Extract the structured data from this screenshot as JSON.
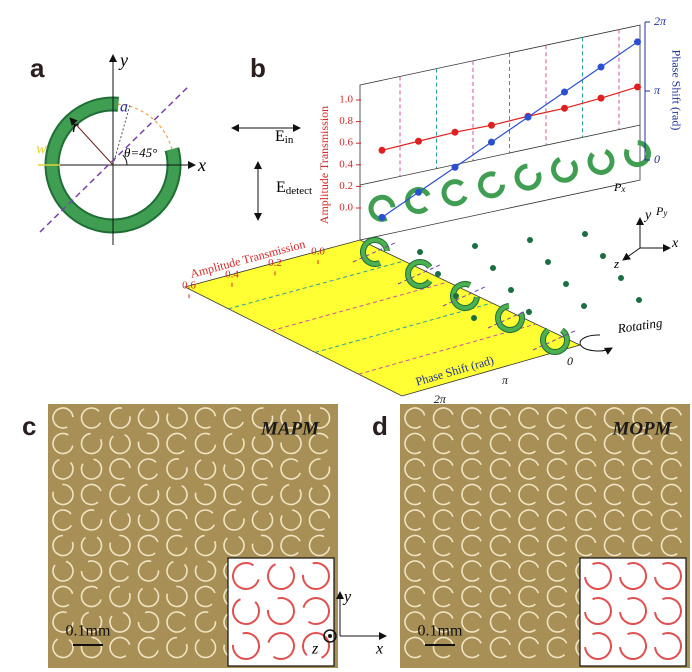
{
  "panel_labels": [
    "a",
    "b",
    "c",
    "d"
  ],
  "panel_a": {
    "axis_y": "y",
    "axis_x": "x",
    "radius": "r",
    "gap": "a",
    "width": "w",
    "angle": "θ=45°"
  },
  "panel_b": {
    "field_in": {
      "base": "E",
      "sub": "in"
    },
    "field_detect": {
      "base": "E",
      "sub": "detect"
    },
    "period_x": {
      "base": "P",
      "sub": "x"
    },
    "period_y": {
      "base": "P",
      "sub": "y"
    },
    "rotating": "Rotating",
    "axes": {
      "x": "x",
      "y": "y",
      "z": "z"
    },
    "plot": {
      "amplitude_label": "Amplitude Transmission",
      "phase_label": "Phase Shift (rad)",
      "amplitude_ticks": [
        {
          "value": 0,
          "label": "0.0"
        },
        0.2,
        0.4,
        0.6,
        0.8,
        {
          "value": 1,
          "label": "1.0"
        }
      ],
      "phase_ticks": [
        0,
        {
          "value": 3.14159,
          "label": "π"
        },
        {
          "value": 6.28319,
          "label": "2π"
        }
      ],
      "amplitude": [
        0.5,
        0.55,
        0.6,
        0.63,
        0.68,
        0.72,
        0.78,
        0.85
      ],
      "phase": [
        0,
        0.785,
        1.571,
        2.356,
        3.142,
        3.927,
        4.712,
        5.498
      ]
    }
  },
  "panel_c": {
    "title": "MAPM",
    "scale": "0.1mm"
  },
  "panel_d": {
    "title": "MOPM",
    "scale": "0.1mm"
  },
  "center_axes": {
    "x": "x",
    "y": "y",
    "z": "z"
  }
}
